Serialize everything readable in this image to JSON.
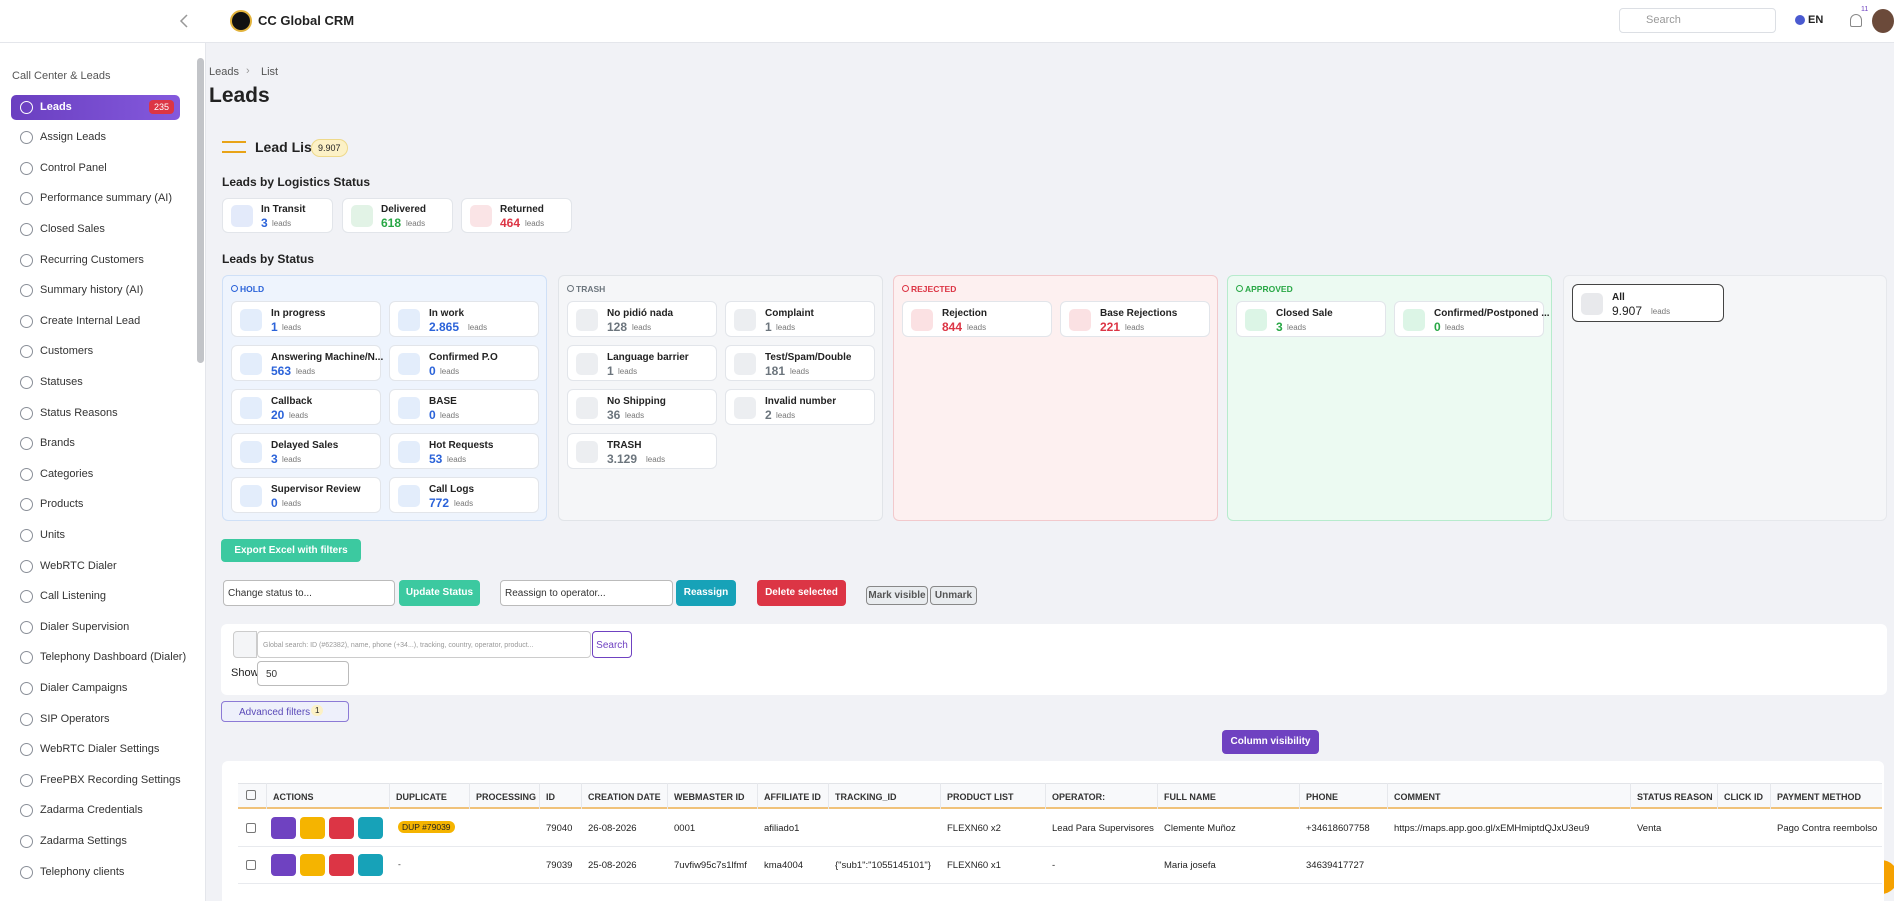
{
  "topbar": {
    "brand": "CC Global CRM",
    "search_placeholder": "Search",
    "language": "EN",
    "notification_count": "11"
  },
  "sidebar": {
    "section": "Call Center & Leads",
    "items": [
      {
        "label": "Leads",
        "badge": "235",
        "active": true
      },
      {
        "label": "Assign Leads"
      },
      {
        "label": "Control Panel"
      },
      {
        "label": "Performance summary (AI)"
      },
      {
        "label": "Closed Sales"
      },
      {
        "label": "Recurring Customers"
      },
      {
        "label": "Summary history (AI)"
      },
      {
        "label": "Create Internal Lead"
      },
      {
        "label": "Customers"
      },
      {
        "label": "Statuses"
      },
      {
        "label": "Status Reasons"
      },
      {
        "label": "Brands"
      },
      {
        "label": "Categories"
      },
      {
        "label": "Products"
      },
      {
        "label": "Units"
      },
      {
        "label": "WebRTC Dialer"
      },
      {
        "label": "Call Listening"
      },
      {
        "label": "Dialer Supervision"
      },
      {
        "label": "Telephony Dashboard (Dialer)"
      },
      {
        "label": "Dialer Campaigns"
      },
      {
        "label": "SIP Operators"
      },
      {
        "label": "WebRTC Dialer Settings"
      },
      {
        "label": "FreePBX Recording Settings"
      },
      {
        "label": "Zadarma Credentials"
      },
      {
        "label": "Zadarma Settings"
      },
      {
        "label": "Telephony clients"
      }
    ]
  },
  "breadcrumb": [
    "Leads",
    "List"
  ],
  "page_title": "Leads",
  "lead_list": {
    "title": "Lead List",
    "count": "9.907"
  },
  "unit": "leads",
  "logistics": {
    "title": "Leads by Logistics Status",
    "cards": [
      {
        "label": "In Transit",
        "count": "3",
        "color": "#2b63d9"
      },
      {
        "label": "Delivered",
        "count": "618",
        "color": "#28a745"
      },
      {
        "label": "Returned",
        "count": "464",
        "color": "#dc3545"
      }
    ]
  },
  "status": {
    "title": "Leads by Status",
    "groups": [
      {
        "name": "HOLD",
        "theme": "hold",
        "items": [
          {
            "label": "In progress",
            "count": "1"
          },
          {
            "label": "In work",
            "count": "2.865"
          },
          {
            "label": "Answering Machine/N...",
            "count": "563"
          },
          {
            "label": "Confirmed P.O",
            "count": "0"
          },
          {
            "label": "Callback",
            "count": "20"
          },
          {
            "label": "BASE",
            "count": "0"
          },
          {
            "label": "Delayed Sales",
            "count": "3"
          },
          {
            "label": "Hot Requests",
            "count": "53"
          },
          {
            "label": "Supervisor Review",
            "count": "0"
          },
          {
            "label": "Call Logs",
            "count": "772"
          }
        ]
      },
      {
        "name": "TRASH",
        "theme": "trash",
        "items": [
          {
            "label": "No pidió nada",
            "count": "128"
          },
          {
            "label": "Complaint",
            "count": "1"
          },
          {
            "label": "Language barrier",
            "count": "1"
          },
          {
            "label": "Test/Spam/Double",
            "count": "181"
          },
          {
            "label": "No Shipping",
            "count": "36"
          },
          {
            "label": "Invalid number",
            "count": "2"
          },
          {
            "label": "TRASH",
            "count": "3.129"
          }
        ]
      },
      {
        "name": "REJECTED",
        "theme": "rejected",
        "items": [
          {
            "label": "Rejection",
            "count": "844"
          },
          {
            "label": "Base Rejections",
            "count": "221"
          }
        ]
      },
      {
        "name": "APPROVED",
        "theme": "approved",
        "items": [
          {
            "label": "Closed Sale",
            "count": "3"
          },
          {
            "label": "Confirmed/Postponed ...",
            "count": "0"
          }
        ]
      }
    ],
    "all": {
      "label": "All",
      "count": "9.907"
    }
  },
  "toolbar": {
    "export": "Export Excel with filters",
    "status_select": "Change status to...",
    "update": "Update Status",
    "operator_select": "Reassign to operator...",
    "reassign": "Reassign",
    "delete": "Delete selected",
    "mark": "Mark visible",
    "unmark": "Unmark"
  },
  "search": {
    "placeholder": "Global search: ID (#62382), name, phone (+34...), tracking, country, operator, product...",
    "button": "Search",
    "show_label": "Show",
    "page_size": "50"
  },
  "advanced_filters": {
    "label": "Advanced filters",
    "count": "1"
  },
  "column_visibility": "Column visibility",
  "table": {
    "columns": [
      "ACTIONS",
      "DUPLICATE",
      "PROCESSING",
      "ID",
      "CREATION DATE",
      "WEBMASTER ID",
      "AFFILIATE ID",
      "TRACKING_ID",
      "PRODUCT LIST",
      "OPERATOR:",
      "FULL NAME",
      "PHONE",
      "COMMENT",
      "STATUS REASON",
      "CLICK ID",
      "PAYMENT METHOD"
    ],
    "rows": [
      {
        "duplicate": "DUP #79039",
        "cells": [
          null,
          "79040",
          "26-08-2026",
          "0001",
          "afiliado1",
          null,
          "FLEXN60 x2",
          "Lead Para Supervisores",
          "Clemente Muñoz",
          "+34618607758",
          "https://maps.app.goo.gl/xEMHmiptdQJxU3eu9",
          "Venta",
          null,
          "Pago Contra reembolso"
        ]
      },
      {
        "duplicate": "-",
        "cells": [
          null,
          "79039",
          "25-08-2026",
          "7uvfiw95c7s1lfmf",
          "kma4004",
          "{\"sub1\":\"1055145101\"}",
          "FLEXN60 x1",
          "-",
          "Maria josefa",
          "34639417727",
          null,
          null,
          null,
          null
        ]
      }
    ]
  }
}
